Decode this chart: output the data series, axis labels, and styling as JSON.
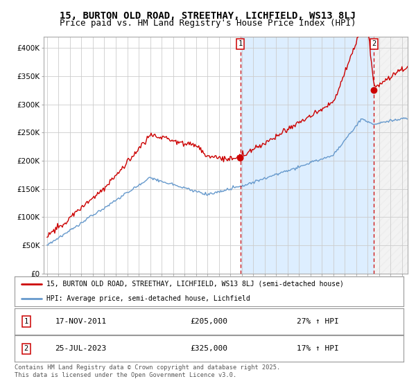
{
  "title": "15, BURTON OLD ROAD, STREETHAY, LICHFIELD, WS13 8LJ",
  "subtitle": "Price paid vs. HM Land Registry's House Price Index (HPI)",
  "ylim": [
    0,
    420000
  ],
  "yticks": [
    0,
    50000,
    100000,
    150000,
    200000,
    250000,
    300000,
    350000,
    400000
  ],
  "ytick_labels": [
    "£0",
    "£50K",
    "£100K",
    "£150K",
    "£200K",
    "£250K",
    "£300K",
    "£350K",
    "£400K"
  ],
  "xlim_start": 1994.7,
  "xlim_end": 2026.5,
  "purchase1_x": 2011.88,
  "purchase1_y": 205000,
  "purchase1_label": "1",
  "purchase1_date": "17-NOV-2011",
  "purchase1_price": "£205,000",
  "purchase1_hpi": "27% ↑ HPI",
  "purchase2_x": 2023.56,
  "purchase2_y": 325000,
  "purchase2_label": "2",
  "purchase2_date": "25-JUL-2023",
  "purchase2_price": "£325,000",
  "purchase2_hpi": "17% ↑ HPI",
  "red_line_color": "#cc0000",
  "blue_line_color": "#6699cc",
  "purchase_dot_color": "#cc0000",
  "vline_color": "#cc0000",
  "background_color": "#ffffff",
  "grid_color": "#cccccc",
  "shade_color": "#ddeeff",
  "legend_line1": "15, BURTON OLD ROAD, STREETHAY, LICHFIELD, WS13 8LJ (semi-detached house)",
  "legend_line2": "HPI: Average price, semi-detached house, Lichfield",
  "footer": "Contains HM Land Registry data © Crown copyright and database right 2025.\nThis data is licensed under the Open Government Licence v3.0.",
  "title_fontsize": 10,
  "subtitle_fontsize": 9
}
